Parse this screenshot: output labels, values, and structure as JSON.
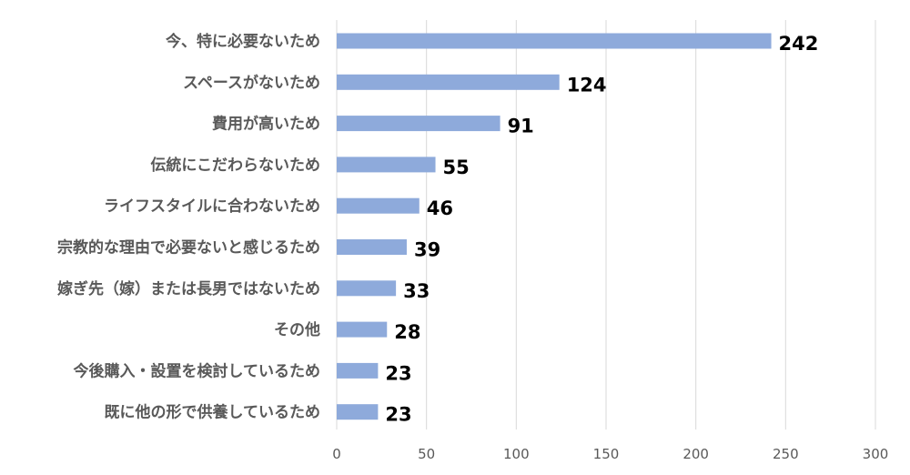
{
  "chart_data": {
    "type": "bar",
    "orientation": "horizontal",
    "categories": [
      "今、特に必要ないため",
      "スペースがないため",
      "費用が高いため",
      "伝統にこだわらないため",
      "ライフスタイルに合わないため",
      "宗教的な理由で必要ないと感じるため",
      "嫁ぎ先（嫁）または長男ではないため",
      "その他",
      "今後購入・設置を検討しているため",
      "既に他の形で供養しているため"
    ],
    "values": [
      242,
      124,
      91,
      55,
      46,
      39,
      33,
      28,
      23,
      23
    ],
    "value_labels": [
      "242",
      "124",
      "91",
      "55",
      "46",
      "39",
      "33",
      "28",
      "23",
      "23"
    ],
    "xlim": [
      0,
      300
    ],
    "xticks": [
      0,
      50,
      100,
      150,
      200,
      250,
      300
    ],
    "xtick_labels": [
      "0",
      "50",
      "100",
      "150",
      "200",
      "250",
      "300"
    ],
    "grid": "vertical",
    "legend": "none",
    "bar_color": "#8eaadb",
    "grid_color": "#d9d9d9"
  }
}
